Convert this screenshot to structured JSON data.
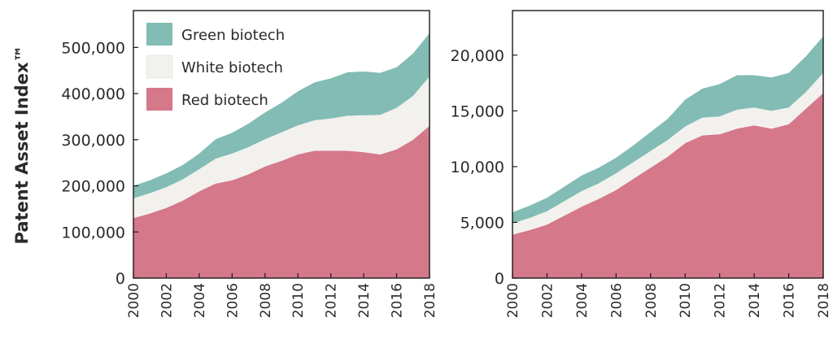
{
  "y_axis_title": "Patent Asset Index™",
  "chart_data": [
    {
      "type": "area",
      "stacked": true,
      "x": [
        2000,
        2001,
        2002,
        2003,
        2004,
        2005,
        2006,
        2007,
        2008,
        2009,
        2010,
        2011,
        2012,
        2013,
        2014,
        2015,
        2016,
        2017,
        2018
      ],
      "xticks": [
        2000,
        2002,
        2004,
        2006,
        2008,
        2010,
        2012,
        2014,
        2016,
        2018
      ],
      "ylim": [
        0,
        580000
      ],
      "yticks": [
        0,
        100000,
        200000,
        300000,
        400000,
        500000
      ],
      "ytick_labels": [
        "0",
        "100,000",
        "200,000",
        "300,000",
        "400,000",
        "500,000"
      ],
      "legend": "top-left",
      "series": [
        {
          "name": "Red biotech",
          "color": "#d5788a",
          "values": [
            130000,
            140000,
            152000,
            168000,
            188000,
            205000,
            212000,
            225000,
            242000,
            254000,
            268000,
            276000,
            276000,
            276000,
            273000,
            268000,
            279000,
            300000,
            330000
          ]
        },
        {
          "name": "White biotech",
          "color": "#f2f1ee",
          "values": [
            43000,
            44000,
            45000,
            46000,
            48000,
            54000,
            58000,
            59000,
            59000,
            62000,
            63000,
            66000,
            70000,
            76000,
            80000,
            86000,
            90000,
            95000,
            107000
          ]
        },
        {
          "name": "Green biotech",
          "color": "#82bcb4",
          "values": [
            27000,
            28000,
            30000,
            31000,
            34000,
            42000,
            45000,
            51000,
            58000,
            64000,
            74000,
            82000,
            87000,
            94000,
            95000,
            91000,
            88000,
            92000,
            94000
          ]
        }
      ]
    },
    {
      "type": "area",
      "stacked": true,
      "x": [
        2000,
        2001,
        2002,
        2003,
        2004,
        2005,
        2006,
        2007,
        2008,
        2009,
        2010,
        2011,
        2012,
        2013,
        2014,
        2015,
        2016,
        2017,
        2018
      ],
      "xticks": [
        2000,
        2002,
        2004,
        2006,
        2008,
        2010,
        2012,
        2014,
        2016,
        2018
      ],
      "ylim": [
        0,
        24000
      ],
      "yticks": [
        0,
        5000,
        10000,
        15000,
        20000
      ],
      "ytick_labels": [
        "0",
        "5,000",
        "10,000",
        "15,000",
        "20,000"
      ],
      "series": [
        {
          "name": "Red biotech",
          "color": "#d5788a",
          "values": [
            3900,
            4300,
            4800,
            5600,
            6400,
            7100,
            7900,
            8900,
            9900,
            10900,
            12100,
            12800,
            12900,
            13400,
            13700,
            13400,
            13800,
            15200,
            16600
          ]
        },
        {
          "name": "White biotech",
          "color": "#f2f1ee",
          "values": [
            1000,
            1100,
            1200,
            1300,
            1400,
            1400,
            1500,
            1500,
            1500,
            1500,
            1500,
            1600,
            1600,
            1700,
            1600,
            1600,
            1500,
            1500,
            1800
          ]
        },
        {
          "name": "Green biotech",
          "color": "#82bcb4",
          "values": [
            1000,
            1100,
            1200,
            1300,
            1400,
            1400,
            1400,
            1500,
            1700,
            1900,
            2400,
            2600,
            2900,
            3100,
            2900,
            3000,
            3100,
            3200,
            3300
          ]
        }
      ]
    }
  ]
}
